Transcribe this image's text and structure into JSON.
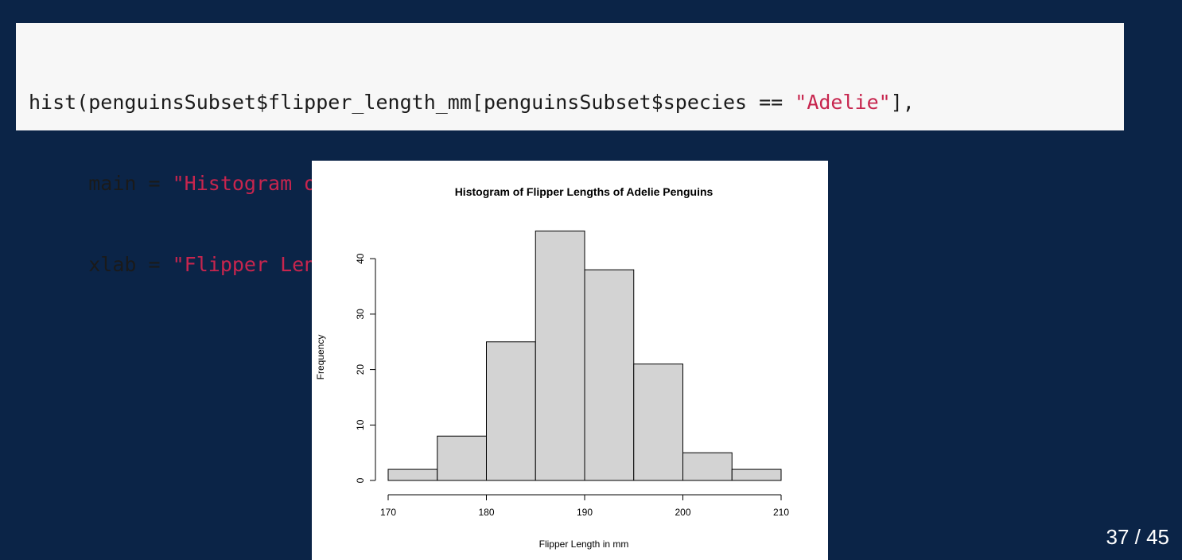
{
  "code": {
    "lines": [
      [
        {
          "t": "plain",
          "v": "hist(penguinsSubset$flipper_length_mm[penguinsSubset$species == "
        },
        {
          "t": "str",
          "v": "\"Adelie\""
        },
        {
          "t": "plain",
          "v": "],"
        }
      ],
      [
        {
          "t": "plain",
          "v": "     main = "
        },
        {
          "t": "str",
          "v": "\"Histogram of Flipper Lengths of Adelie Penguins\""
        },
        {
          "t": "plain",
          "v": ","
        }
      ],
      [
        {
          "t": "plain",
          "v": "     xlab = "
        },
        {
          "t": "str",
          "v": "\"Flipper Length in mm\""
        },
        {
          "t": "plain",
          "v": ")"
        }
      ]
    ]
  },
  "chart_data": {
    "type": "bar",
    "subtype": "histogram",
    "title": "Histogram of Flipper Lengths of Adelie Penguins",
    "xlabel": "Flipper Length in mm",
    "ylabel": "Frequency",
    "bins": [
      [
        170,
        175
      ],
      [
        175,
        180
      ],
      [
        180,
        185
      ],
      [
        185,
        190
      ],
      [
        190,
        195
      ],
      [
        195,
        200
      ],
      [
        200,
        205
      ],
      [
        205,
        210
      ]
    ],
    "values": [
      2,
      8,
      25,
      45,
      38,
      21,
      5,
      2
    ],
    "xlim": [
      170,
      210
    ],
    "ylim": [
      0,
      45
    ],
    "xticks": [
      170,
      180,
      190,
      200,
      210
    ],
    "yticks": [
      0,
      10,
      20,
      30,
      40
    ],
    "bar_fill": "#d3d3d3",
    "bar_stroke": "#000000",
    "grid": false
  },
  "slide": {
    "page_number": "37 / 45"
  },
  "colors": {
    "background": "#0b2447",
    "code_background": "#f7f7f7",
    "code_string": "#c7254e"
  }
}
